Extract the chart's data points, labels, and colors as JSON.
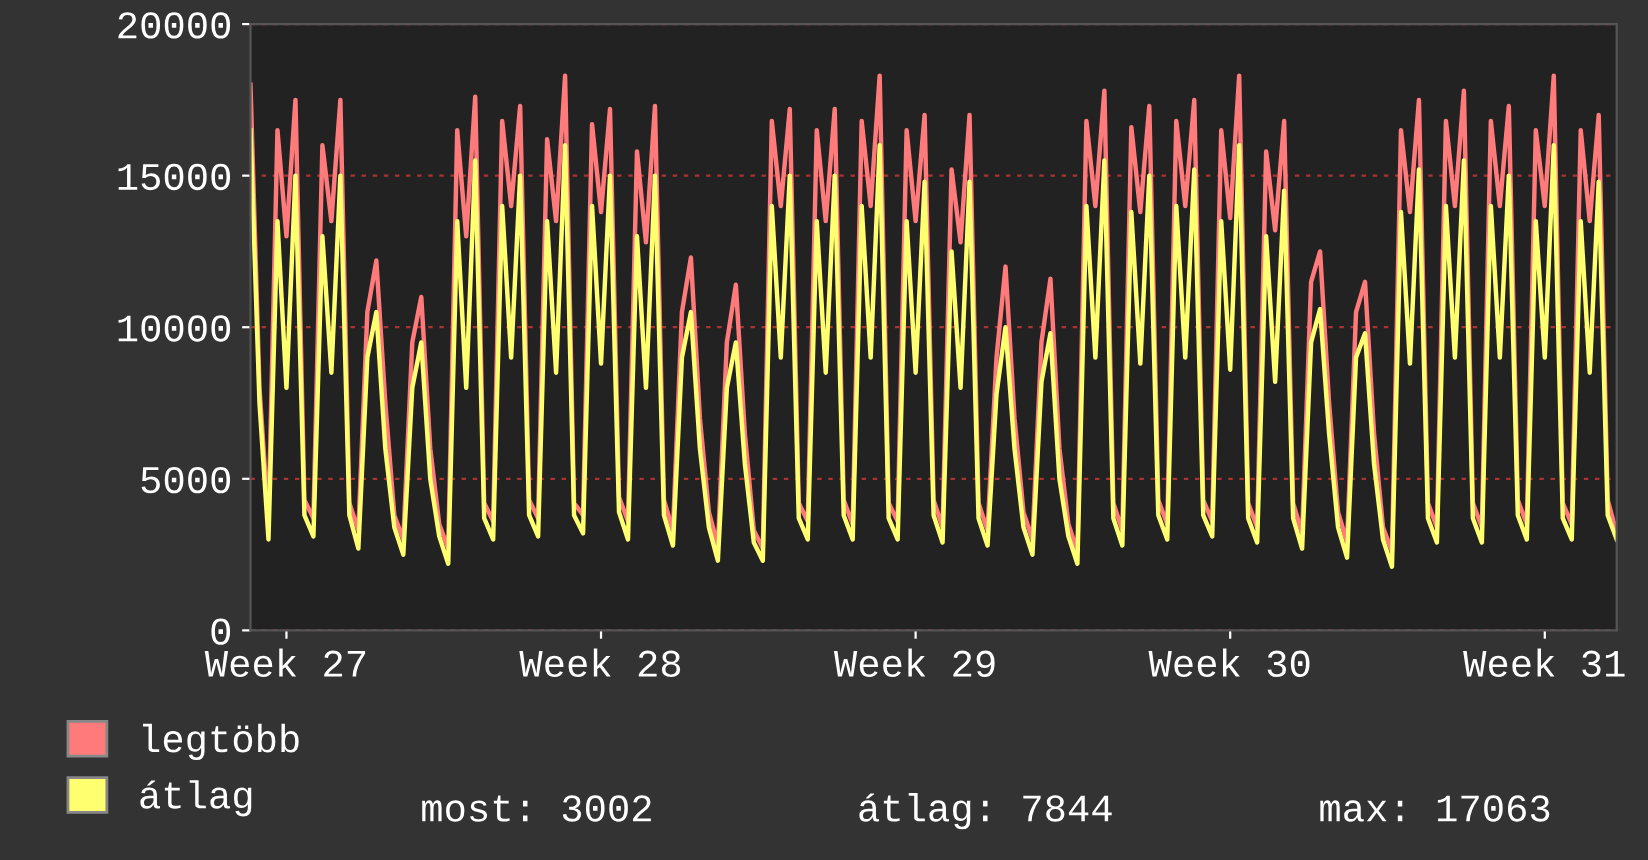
{
  "chart_data": {
    "type": "line",
    "categories": [
      null,
      null,
      null,
      null,
      "Week 27",
      null,
      null,
      null,
      null,
      null,
      null,
      null,
      null,
      null,
      null,
      null,
      null,
      null,
      null,
      null,
      null,
      null,
      null,
      null,
      null,
      null,
      null,
      null,
      null,
      null,
      null,
      null,
      null,
      null,
      null,
      null,
      null,
      null,
      null,
      "Week 28",
      null,
      null,
      null,
      null,
      null,
      null,
      null,
      null,
      null,
      null,
      null,
      null,
      null,
      null,
      null,
      null,
      null,
      null,
      null,
      null,
      null,
      null,
      null,
      null,
      null,
      null,
      null,
      null,
      null,
      null,
      null,
      null,
      null,
      null,
      "Week 29",
      null,
      null,
      null,
      null,
      null,
      null,
      null,
      null,
      null,
      null,
      null,
      null,
      null,
      null,
      null,
      null,
      null,
      null,
      null,
      null,
      null,
      null,
      null,
      null,
      null,
      null,
      null,
      null,
      null,
      null,
      null,
      null,
      null,
      null,
      "Week 30",
      null,
      null,
      null,
      null,
      null,
      null,
      null,
      null,
      null,
      null,
      null,
      null,
      null,
      null,
      null,
      null,
      null,
      null,
      null,
      null,
      null,
      null,
      null,
      null,
      null,
      null,
      null,
      null,
      null,
      null,
      null,
      null,
      null,
      null,
      "Week 31",
      null,
      null,
      null,
      null,
      null,
      null,
      null,
      null
    ],
    "series": [
      {
        "name": "legtöbb",
        "color": "#ff7b7b",
        "values": [
          18000,
          8000,
          3600,
          16500,
          13000,
          17500,
          4300,
          3700,
          16000,
          13500,
          17500,
          4200,
          3300,
          10500,
          12200,
          7500,
          3800,
          3000,
          9500,
          11000,
          6000,
          3500,
          2700,
          16500,
          13000,
          17600,
          4200,
          3600,
          16800,
          14000,
          17300,
          4300,
          3700,
          16200,
          13500,
          18300,
          4200,
          3800,
          16700,
          13800,
          17200,
          4400,
          3600,
          15800,
          12800,
          17300,
          4300,
          3300,
          10500,
          12300,
          7000,
          3900,
          2800,
          9500,
          11400,
          6500,
          3300,
          2700,
          16800,
          14000,
          17200,
          4200,
          3600,
          16500,
          13500,
          17200,
          4300,
          3500,
          16800,
          14000,
          18300,
          4200,
          3600,
          16500,
          13500,
          17000,
          4300,
          3400,
          15200,
          12800,
          17000,
          4200,
          3300,
          9000,
          12000,
          7000,
          3900,
          3000,
          9500,
          11600,
          6000,
          3500,
          2600,
          16800,
          14000,
          17800,
          4200,
          3300,
          16600,
          13800,
          17300,
          4300,
          3500,
          16800,
          14000,
          17500,
          4300,
          3600,
          16500,
          13600,
          18300,
          4200,
          3400,
          15800,
          13200,
          16800,
          4200,
          3200,
          11500,
          12500,
          7500,
          3900,
          2900,
          10500,
          11500,
          6500,
          3400,
          2600,
          16500,
          13800,
          17500,
          4200,
          3400,
          16800,
          14000,
          17800,
          4200,
          3400,
          16800,
          14000,
          17300,
          4300,
          3500,
          16500,
          14000,
          18300,
          4200,
          3500,
          16500,
          13500,
          17000,
          4300,
          3200
        ]
      },
      {
        "name": "átlag",
        "color": "#ffff70",
        "values": [
          16500,
          7500,
          3000,
          13500,
          8000,
          15000,
          3800,
          3100,
          13000,
          8500,
          15000,
          3800,
          2700,
          9000,
          10500,
          6000,
          3400,
          2500,
          8000,
          9500,
          5000,
          3100,
          2200,
          13500,
          8000,
          15500,
          3700,
          3000,
          14000,
          9000,
          15000,
          3800,
          3100,
          13500,
          8500,
          16000,
          3800,
          3200,
          14000,
          8800,
          15000,
          3900,
          3000,
          13000,
          8000,
          15000,
          3800,
          2800,
          9000,
          10500,
          6000,
          3400,
          2300,
          8000,
          9500,
          5500,
          2900,
          2300,
          14000,
          9000,
          15000,
          3700,
          3000,
          13500,
          8500,
          15000,
          3800,
          3000,
          14000,
          9000,
          16000,
          3700,
          3000,
          13500,
          8500,
          14800,
          3800,
          2900,
          12500,
          8000,
          14800,
          3700,
          2800,
          7800,
          10000,
          6000,
          3400,
          2500,
          8200,
          9800,
          5000,
          3100,
          2200,
          14000,
          9000,
          15500,
          3700,
          2800,
          13800,
          8800,
          15000,
          3800,
          3000,
          14000,
          9000,
          15200,
          3800,
          3100,
          13500,
          8600,
          16000,
          3700,
          2900,
          13000,
          8200,
          14500,
          3700,
          2700,
          9500,
          10600,
          6500,
          3400,
          2400,
          9000,
          9800,
          5500,
          3000,
          2100,
          13800,
          8800,
          15200,
          3700,
          2900,
          14000,
          9000,
          15500,
          3700,
          2900,
          14000,
          9000,
          15000,
          3800,
          3000,
          13500,
          9000,
          16000,
          3700,
          3000,
          13500,
          8500,
          14800,
          3800,
          3000
        ]
      }
    ],
    "ylim": [
      0,
      20000
    ],
    "yticks": [
      0,
      5000,
      10000,
      15000,
      20000
    ],
    "grid": "y",
    "legend": "bottom left",
    "annotations": [
      "most: 3002",
      "átlag: 7844",
      "max: 17063"
    ]
  }
}
